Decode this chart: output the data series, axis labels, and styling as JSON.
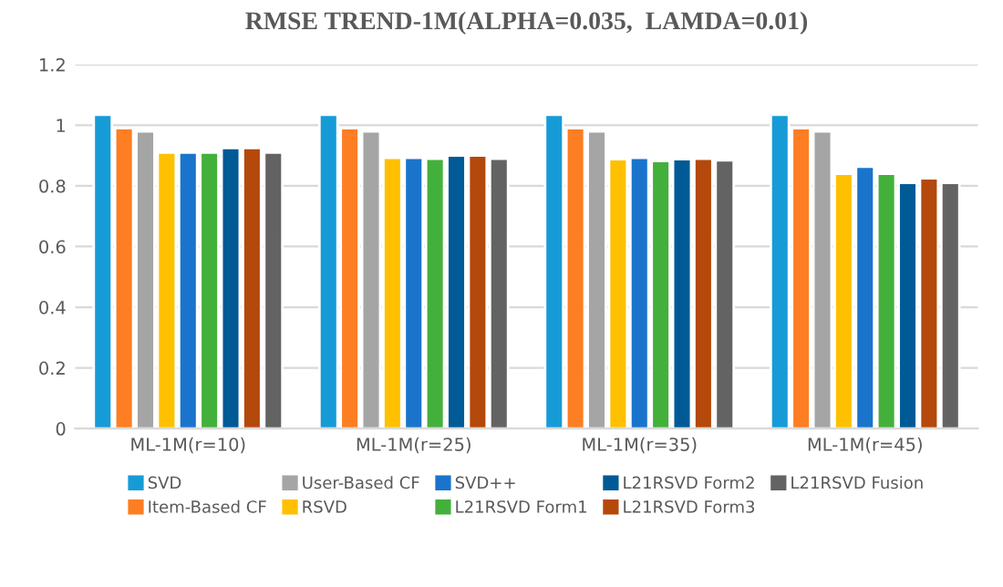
{
  "chart_data": {
    "type": "bar",
    "title": "RMSE TREND-1M(ALPHA=0.035,  LAMDA=0.01)",
    "categories": [
      "ML-1M(r=10)",
      "ML-1M(r=25)",
      "ML-1M(r=35)",
      "ML-1M(r=45)"
    ],
    "series": [
      {
        "name": "SVD",
        "color": "#179bd7",
        "values": [
          1.035,
          1.035,
          1.035,
          1.035
        ]
      },
      {
        "name": "Item-Based CF",
        "color": "#fd7e23",
        "values": [
          0.99,
          0.99,
          0.99,
          0.99
        ]
      },
      {
        "name": "User-Based CF",
        "color": "#a5a5a5",
        "values": [
          0.98,
          0.98,
          0.98,
          0.98
        ]
      },
      {
        "name": "RSVD",
        "color": "#ffc000",
        "values": [
          0.91,
          0.893,
          0.888,
          0.84
        ]
      },
      {
        "name": "SVD++",
        "color": "#1a74cc",
        "values": [
          0.91,
          0.893,
          0.893,
          0.863
        ]
      },
      {
        "name": "L21RSVD Form1",
        "color": "#44b03c",
        "values": [
          0.91,
          0.89,
          0.882,
          0.84
        ]
      },
      {
        "name": "L21RSVD Form2",
        "color": "#005a96",
        "values": [
          0.925,
          0.9,
          0.888,
          0.81
        ]
      },
      {
        "name": "L21RSVD Form3",
        "color": "#b5480b",
        "values": [
          0.925,
          0.9,
          0.89,
          0.825
        ]
      },
      {
        "name": "L21RSVD Fusion",
        "color": "#636363",
        "values": [
          0.91,
          0.89,
          0.884,
          0.81
        ]
      }
    ],
    "ylim": [
      0,
      1.2
    ],
    "yticks": [
      0,
      0.2,
      0.4,
      0.6,
      0.8,
      1,
      1.2
    ],
    "grid": "y",
    "legend": "bottom"
  }
}
